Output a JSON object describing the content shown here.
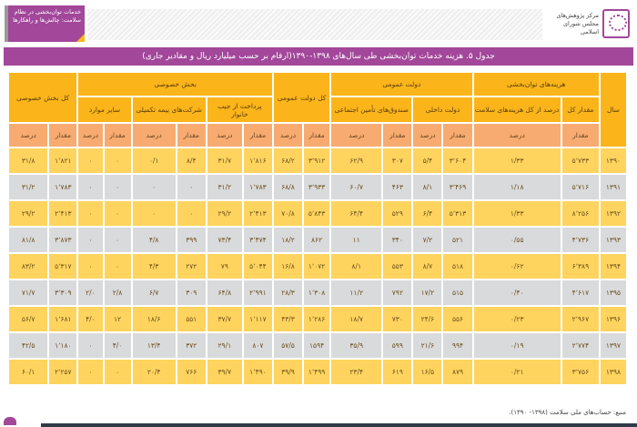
{
  "header": {
    "badge_text": "خدمات توان‌بخشی در نظام سلامت: چالش‌ها و راهکارها",
    "logo_text": "مرکز پژوهش‌های مجلس شورای اسلامی"
  },
  "title": "جدول ۵. هزینه خدمات توان‌بخشی طی سال‌های ۱۳۹۸-۱۳۹۰(ارقام بر حسب میلیارد ریال و مقادیر جاری)",
  "columns": {
    "year": "سال",
    "rehab": "هزینه‌های توان‌بخشی",
    "public": "دولت عمومی",
    "public_total": "کل دولت عمومی",
    "private": "بخش خصوصی",
    "private_total": "کل بخش خصوصی",
    "total_amount": "مقدار کل",
    "share_health": "درصد از کل هزینه‌های سلامت",
    "domestic_gov": "دولت داخلی",
    "social_funds": "صندوق‌های تأمین اجتماعی",
    "oop": "پرداخت از جیب خانوار",
    "insurance": "شرکت‌های بیمه تکمیلی",
    "other": "سایر موارد",
    "amount": "مقدار",
    "percent": "درصد"
  },
  "rows": [
    [
      "۱۳۹۰",
      "۵٬۷۳۳",
      "۱/۳۳",
      "۳٬۶۰۴",
      "۵/۴",
      "۳۰۷",
      "۶۲/۹",
      "۳٬۹۱۲",
      "۶۸/۲",
      "۱٬۸۱۶",
      "۳۱/۷",
      "۸/۴",
      "۰/۱",
      "۰",
      "۰",
      "۱٬۸۲۱",
      "۳۱/۸"
    ],
    [
      "۱۳۹۱",
      "۵٬۷۱۶",
      "۱/۱۸",
      "۳٬۴۶۹",
      "۸/۱",
      "۴۶۳",
      "۶۰/۷",
      "۳٬۹۳۳",
      "۶۸/۸",
      "۱٬۷۸۳",
      "۳۱/۲",
      "۰",
      "۰",
      "۰",
      "۰",
      "۱٬۷۸۳",
      "۳۱/۲"
    ],
    [
      "۱۳۹۲",
      "۸٬۲۵۶",
      "۱/۳۳",
      "۵٬۳۱۳",
      "۶/۴",
      "۵۲۹",
      "۶۴/۴",
      "۵٬۸۴۳",
      "۷۰/۸",
      "۲٬۴۱۳",
      "۲۹/۲",
      "۰",
      "۰",
      "۰",
      "۰",
      "۲٬۴۱۳",
      "۲۹/۲"
    ],
    [
      "۱۳۹۳",
      "۴٬۷۳۶",
      "۰/۵۵",
      "۵۲۱",
      "۷/۲",
      "۳۴۰",
      "۱۱",
      "۸۶۲",
      "۱۸/۲",
      "۳٬۴۷۴",
      "۷۳/۴",
      "۳۹۹",
      "۴/۸",
      "۰",
      "۰",
      "۳٬۸۷۳",
      "۸۱/۸"
    ],
    [
      "۱۳۹۴",
      "۶٬۳۸۹",
      "۰/۶۲",
      "۵۱۸",
      "۸/۷",
      "۵۵۳",
      "۸/۱",
      "۱٬۰۷۲",
      "۱۶/۸",
      "۵٬۰۴۴",
      "۷۹",
      "۲۷۲",
      "۴/۳",
      "۰",
      "۰",
      "۵٬۳۱۷",
      "۸۳/۲"
    ],
    [
      "۱۳۹۵",
      "۴٬۶۱۷",
      "۰/۴۰",
      "۵۱۵",
      "۱۷/۲",
      "۷۹۲",
      "۱۱/۲",
      "۱٬۳۰۸",
      "۲۸/۳",
      "۲٬۹۹۱",
      "۶۴/۸",
      "۳۰۹",
      "۶/۷",
      "۲/۸",
      "۲/۰",
      "۳٬۳۰۹",
      "۷۱/۷"
    ],
    [
      "۱۳۹۶",
      "۲٬۹۶۷",
      "۰/۲۳",
      "۵۵۶",
      "۲۴/۶",
      "۷۳۰",
      "۱۸/۷",
      "۱٬۲۸۶",
      "۴۳/۳",
      "۱٬۱۱۷",
      "۳۷/۷",
      "۵۵۱",
      "۱۸/۶",
      "۱۲",
      "۴/۰",
      "۱٬۶۸۱",
      "۵۶/۷"
    ],
    [
      "۱۳۹۷",
      "۲٬۷۷۴",
      "۰/۱۹",
      "۹۹۴",
      "۲۱/۶",
      "۵۹۹",
      "۳۵/۹",
      "۱۵۹۴",
      "۵۷/۵",
      "۸۰۷",
      "۲۹/۱",
      "۳۷۲",
      "۱۳/۴",
      "۴/۰",
      "۰",
      "۱٬۱۸۰",
      "۴۲/۵"
    ],
    [
      "۱۳۹۸",
      "۳٬۷۵۶",
      "۰/۲۱",
      "۸۷۹",
      "۱۶/۵",
      "۶۱۹",
      "۲۳/۴",
      "۱٬۴۹۹",
      "۳۹/۹",
      "۱٬۴۹۰",
      "۳۹/۷",
      "۷۶۶",
      "۲۰/۴",
      "۰",
      "۰",
      "۲٬۲۵۷",
      "۶۰/۱"
    ]
  ],
  "source": "منبع: حساب‌های ملی سلامت (۱۳۹۸- ۱۳۹۰).",
  "colors": {
    "purple": "#a2479a",
    "header": "#fbb51a",
    "unit_row": "#f7ab70",
    "row_yellow": "#fed45f",
    "row_gray": "#d9dadc"
  }
}
